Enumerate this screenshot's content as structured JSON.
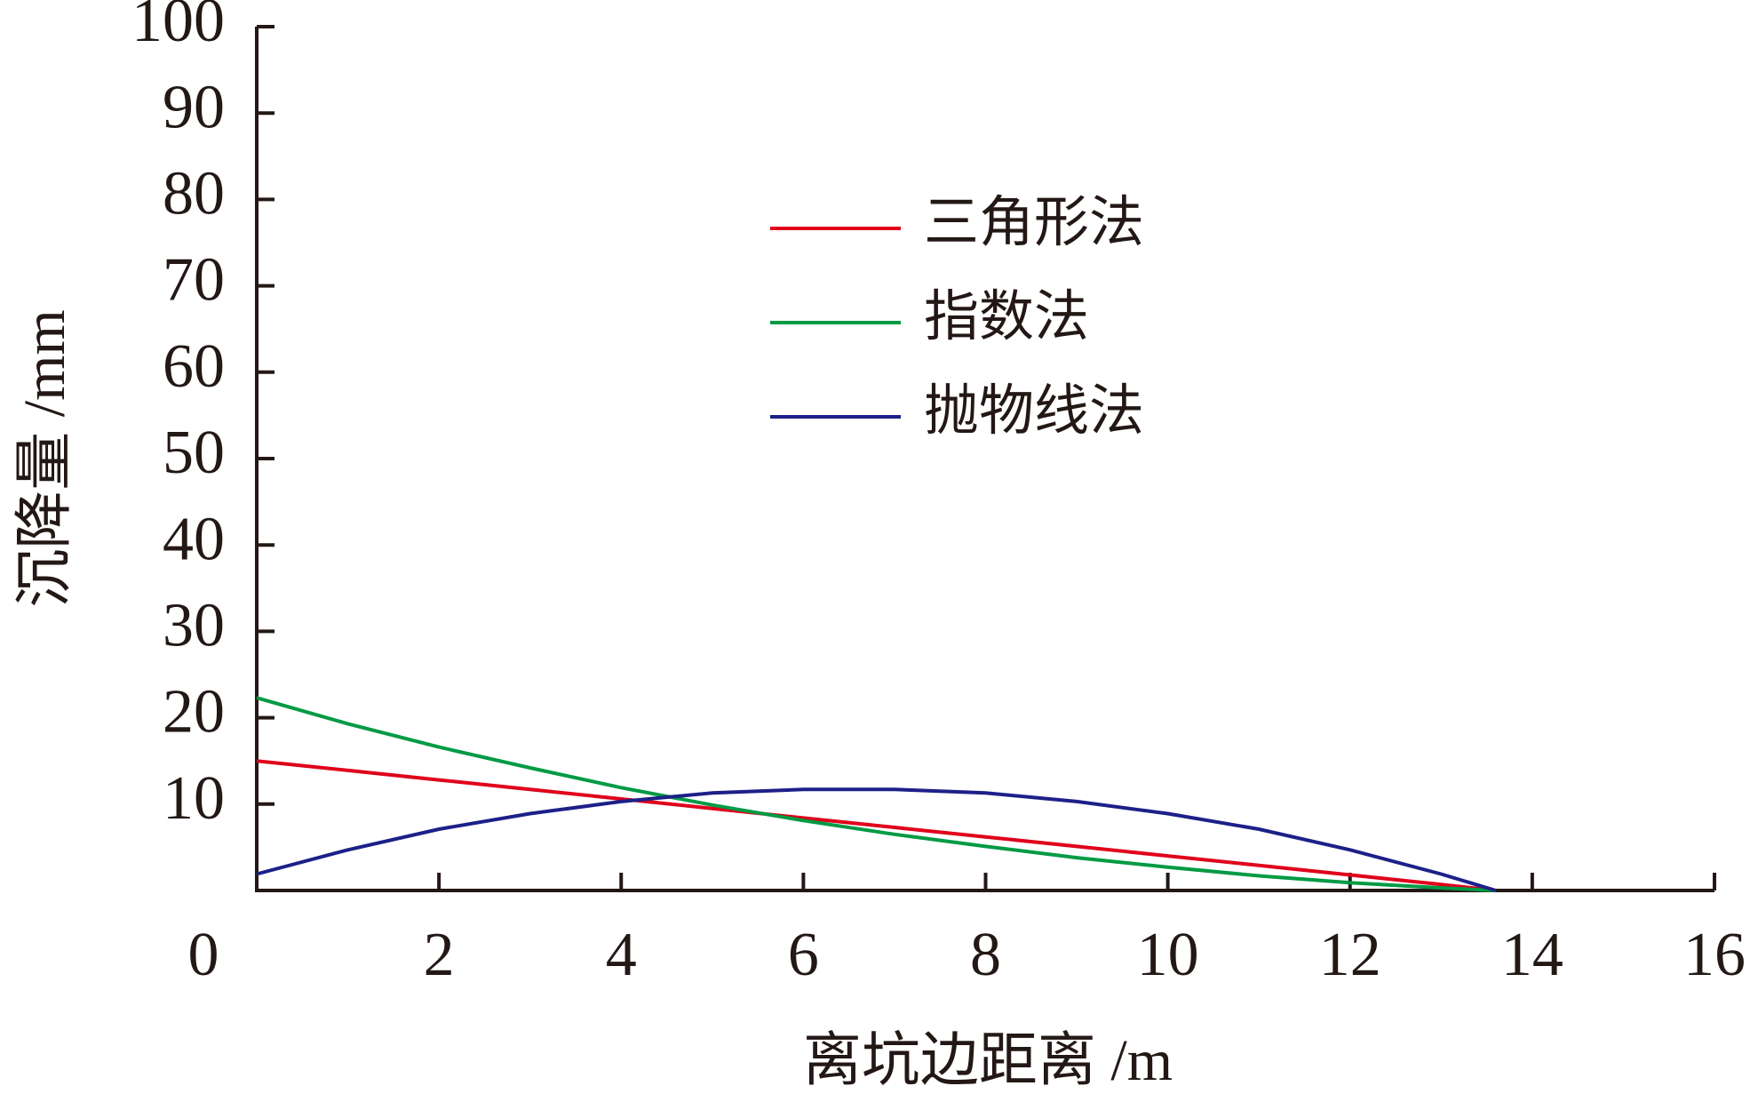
{
  "chart_data": {
    "type": "line",
    "x": [
      0,
      1,
      2,
      3,
      4,
      5,
      6,
      7,
      8,
      9,
      10,
      11,
      12,
      13,
      13.6
    ],
    "series": [
      {
        "name": "三角形法",
        "color": "#e0001b",
        "values": [
          15,
          13.9,
          12.8,
          11.7,
          10.6,
          9.5,
          8.4,
          7.3,
          6.2,
          5.1,
          4.0,
          2.9,
          1.8,
          0.7,
          0
        ]
      },
      {
        "name": "指数法",
        "color": "#009a44",
        "values": [
          22.3,
          19.3,
          16.6,
          14.2,
          11.9,
          9.9,
          8.1,
          6.5,
          5.1,
          3.8,
          2.7,
          1.7,
          0.9,
          0.3,
          0
        ]
      },
      {
        "name": "抛物线法",
        "color": "#1d2088",
        "values": [
          1.9,
          4.7,
          7.1,
          8.9,
          10.3,
          11.3,
          11.7,
          11.7,
          11.3,
          10.3,
          8.9,
          7.1,
          4.7,
          1.9,
          0
        ]
      }
    ],
    "xlabel": "离坑边距离 /m",
    "ylabel": "沉降量 /mm",
    "xlim": [
      0,
      16
    ],
    "xticks": [
      0,
      2,
      4,
      6,
      8,
      10,
      12,
      14,
      16
    ],
    "ylim": [
      0,
      100
    ],
    "yticks": [
      10,
      20,
      30,
      40,
      50,
      60,
      70,
      80,
      90,
      100
    ],
    "legend": "upper center"
  }
}
